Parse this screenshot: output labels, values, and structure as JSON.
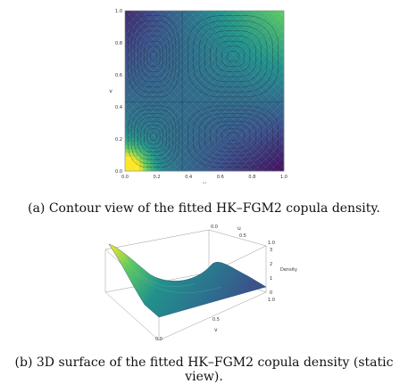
{
  "chart_data": [
    {
      "type": "contour",
      "xlabel": "u",
      "ylabel": "v",
      "xlim": [
        0,
        1
      ],
      "ylim": [
        0,
        1
      ],
      "x_ticks": [
        "0.0",
        "0.2",
        "0.4",
        "0.6",
        "0.8",
        "1.0"
      ],
      "y_ticks": [
        "0.0",
        "0.2",
        "0.4",
        "0.6",
        "0.8",
        "1.0"
      ],
      "colormap": [
        "#440154",
        "#3b528b",
        "#21918c",
        "#5ec962",
        "#fde725"
      ],
      "zero_lines": {
        "u": 0.36,
        "v": 0.43
      },
      "caption": "(a) Contour view of the fitted HK–FGM2 copula density."
    },
    {
      "type": "surface",
      "xlabel": "v",
      "ylabel": "u",
      "zlabel": "Density",
      "z_ticks": [
        "0",
        "1",
        "2",
        "3"
      ],
      "u_ticks": [
        "0.0",
        "0.5",
        "1.0"
      ],
      "v_ticks": [
        "0.0",
        "0.5",
        "1.0"
      ],
      "colormap": [
        "#440154",
        "#3b528b",
        "#21918c",
        "#5ec962",
        "#fde725"
      ],
      "caption": "(b) 3D surface of the fitted HK–FGM2 copula density (static view)."
    }
  ]
}
